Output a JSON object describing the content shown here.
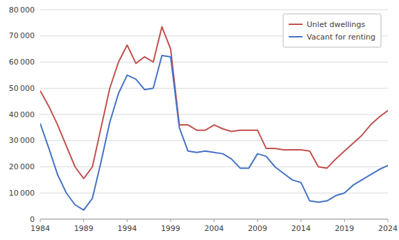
{
  "chart_data": {
    "type": "line",
    "x": [
      1984,
      1985,
      1986,
      1987,
      1988,
      1989,
      1990,
      1991,
      1992,
      1993,
      1994,
      1995,
      1996,
      1997,
      1998,
      1999,
      2000,
      2001,
      2002,
      2003,
      2004,
      2005,
      2006,
      2007,
      2008,
      2009,
      2010,
      2011,
      2012,
      2013,
      2014,
      2015,
      2016,
      2017,
      2018,
      2019,
      2020,
      2021,
      2022,
      2023,
      2024
    ],
    "series": [
      {
        "name": "Unlet dwellings",
        "color": "#c0504d",
        "values": [
          49000,
          43000,
          36000,
          28000,
          20000,
          15500,
          20000,
          35000,
          50000,
          60000,
          66500,
          59500,
          62000,
          60000,
          73500,
          65000,
          36000,
          36000,
          34000,
          34000,
          36000,
          34500,
          33500,
          34000,
          34000,
          34000,
          27000,
          27000,
          26500,
          26500,
          26500,
          26000,
          20000,
          19500,
          23000,
          26000,
          29000,
          32000,
          36000,
          39000,
          41500
        ]
      },
      {
        "name": "Vacant for renting",
        "color": "#4472c4",
        "values": [
          36500,
          27000,
          17000,
          10000,
          5500,
          3500,
          8000,
          22000,
          37000,
          48000,
          55000,
          53500,
          49500,
          50000,
          62500,
          62000,
          35000,
          26000,
          25500,
          26000,
          25500,
          25000,
          23000,
          19500,
          19500,
          25000,
          24000,
          20000,
          17500,
          15000,
          14000,
          7000,
          6500,
          7000,
          9000,
          10000,
          13000,
          15000,
          17000,
          19000,
          20500
        ]
      }
    ],
    "xlim": [
      1984,
      2024
    ],
    "xticks": [
      1984,
      1989,
      1994,
      1999,
      2004,
      2009,
      2014,
      2019,
      2024
    ],
    "ylim": [
      0,
      80000
    ],
    "yticks": [
      0,
      {
        "value": 10000,
        "label": "10 000"
      },
      {
        "value": 20000,
        "label": "20 000"
      },
      {
        "value": 30000,
        "label": "30 000"
      },
      {
        "value": 40000,
        "label": "40 000"
      },
      {
        "value": 50000,
        "label": "50 000"
      },
      {
        "value": 60000,
        "label": "60 000"
      },
      {
        "value": 70000,
        "label": "70 000"
      },
      {
        "value": 80000,
        "label": "80 000"
      }
    ],
    "grid": true,
    "legend": "upper right"
  }
}
